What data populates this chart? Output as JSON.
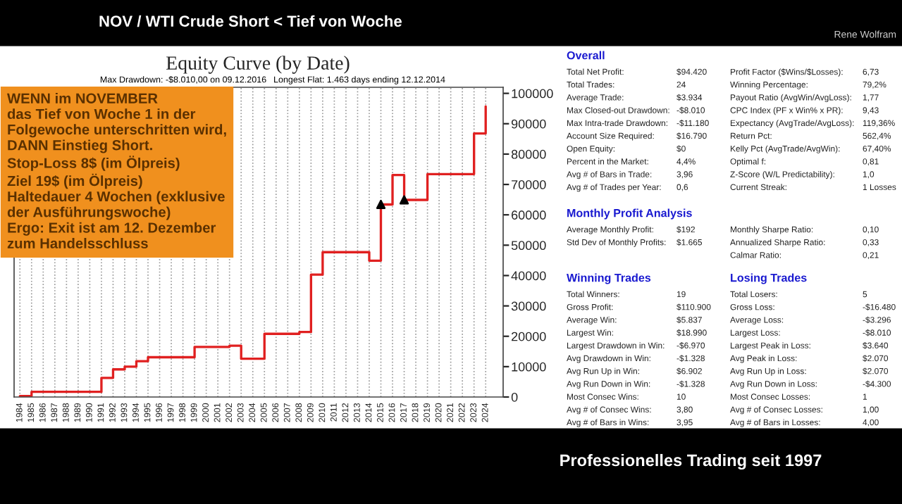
{
  "chart_data": [
    {
      "type": "step",
      "title": "Equity Curve (by Date)",
      "categories": [
        "1984",
        "1985",
        "1986",
        "1987",
        "1988",
        "1989",
        "1990",
        "1991",
        "1992",
        "1993",
        "1994",
        "1995",
        "1996",
        "1997",
        "1998",
        "1999",
        "2000",
        "2001",
        "2002",
        "2003",
        "2004",
        "2005",
        "2006",
        "2007",
        "2008",
        "2009",
        "2010",
        "2011",
        "2012",
        "2013",
        "2014",
        "2015",
        "2016",
        "2017",
        "2018",
        "2019",
        "2020",
        "2021",
        "2022",
        "2023",
        "2024"
      ],
      "series": [
        {
          "type": "step",
          "color": "#e02020",
          "values": [
            300,
            1700,
            1700,
            1700,
            1700,
            1700,
            1700,
            6300,
            9100,
            10000,
            11800,
            13100,
            13100,
            13100,
            13100,
            16500,
            16500,
            16500,
            16900,
            12600,
            12600,
            20800,
            20800,
            20800,
            21400,
            40300,
            47700,
            47700,
            47700,
            47700,
            44900,
            63400,
            73100,
            64900,
            64900,
            73400,
            73400,
            73400,
            73400,
            86800,
            95700
          ]
        },
        {
          "type": "scatter",
          "color": "#000000",
          "marker": "triangle",
          "values": [
            null,
            null,
            null,
            null,
            null,
            null,
            null,
            null,
            null,
            null,
            null,
            null,
            null,
            null,
            null,
            null,
            null,
            null,
            null,
            null,
            null,
            null,
            null,
            null,
            null,
            null,
            null,
            null,
            null,
            null,
            null,
            63400,
            null,
            64900,
            null,
            null,
            null,
            null,
            null,
            null,
            null
          ]
        }
      ],
      "ylim": [
        0,
        102000
      ],
      "yticks": [
        0,
        10000,
        20000,
        30000,
        40000,
        50000,
        60000,
        70000,
        80000,
        90000,
        100000
      ],
      "grid": "x",
      "annotations": [
        "NOV / WTI Crude Short < Tief von Woche",
        "Rene Wolfram",
        "Max Drawdown: -$8.010,00 on 09.12.2016",
        "Longest Flat: 1.463 days ending 12.12.2014",
        "WENN im NOVEMBER\ndas Tief von Woche 1 in der\nFolgewoche unterschritten wird,\nDANN Einstieg Short.\nStop-Loss 8$ (im Ölpreis)\nZiel 19$ (im Ölpreis)\nHaltedauer 4 Wochen (exklusive\nder Ausführungswoche)\nErgo: Exit ist am 12. Dezember\nzum Handelsschluss",
        "Professionelles Trading seit 1997"
      ]
    },
    {
      "type": "other",
      "title": "Overall",
      "annotations": [
        "Total Net Profit:",
        "$94.420",
        "Total Trades:",
        "24",
        "Average Trade:",
        "$3.934",
        "Max Closed-out Drawdown:",
        "-$8.010",
        "Max Intra-trade Drawdown:",
        "-$11.180",
        "Account Size Required:",
        "$16.790",
        "Open Equity:",
        "$0",
        "Percent in the Market:",
        "4,4%",
        "Avg # of Bars in Trade:",
        "3,96",
        "Avg # of Trades per Year:",
        "0,6"
      ]
    },
    {
      "type": "other",
      "annotations": [
        "Profit Factor ($Wins/$Losses):",
        "6,73",
        "Winning Percentage:",
        "79,2%",
        "Payout Ratio (AvgWin/AvgLoss):",
        "1,77",
        "CPC Index (PF x Win% x PR):",
        "9,43",
        "Expectancy (AvgTrade/AvgLoss):",
        "119,36%",
        "Return Pct:",
        "562,4%",
        "Kelly Pct (AvgTrade/AvgWin):",
        "67,40%",
        "Optimal f:",
        "0,81",
        "Z-Score (W/L Predictability):",
        "1,0",
        "Current Streak:",
        "1 Losses"
      ]
    },
    {
      "type": "other",
      "title": "Monthly Profit Analysis",
      "annotations": [
        "Average Monthly Profit:",
        "$192",
        "Std Dev of Monthly Profits:",
        "$1.665"
      ]
    },
    {
      "type": "other",
      "annotations": [
        "Monthly Sharpe Ratio:",
        "0,10",
        "Annualized Sharpe Ratio:",
        "0,33",
        "Calmar Ratio:",
        "0,21"
      ]
    },
    {
      "type": "other",
      "title": "Winning Trades",
      "annotations": [
        "Total Winners:",
        "19",
        "Gross Profit:",
        "$110.900",
        "Average Win:",
        "$5.837",
        "Largest Win:",
        "$18.990",
        "Largest Drawdown in Win:",
        "-$6.970",
        "Avg Drawdown in Win:",
        "-$1.328",
        "Avg Run Up in Win:",
        "$6.902",
        "Avg Run Down in Win:",
        "-$1.328",
        "Most Consec Wins:",
        "10",
        "Avg # of Consec Wins:",
        "3,80",
        "Avg # of Bars in Wins:",
        "3,95"
      ]
    },
    {
      "type": "other",
      "title": "Losing Trades",
      "annotations": [
        "Total Losers:",
        "5",
        "Gross Loss:",
        "-$16.480",
        "Average Loss:",
        "-$3.296",
        "Largest Loss:",
        "-$8.010",
        "Largest Peak in Loss:",
        "$3.640",
        "Avg Peak in Loss:",
        "$2.070",
        "Avg Run Up in Loss:",
        "$2.070",
        "Avg Run Down in Loss:",
        "-$4.300",
        "Most Consec Losses:",
        "1",
        "Avg # of Consec Losses:",
        "1,00",
        "Avg # of Bars in Losses:",
        "4,00"
      ]
    }
  ]
}
